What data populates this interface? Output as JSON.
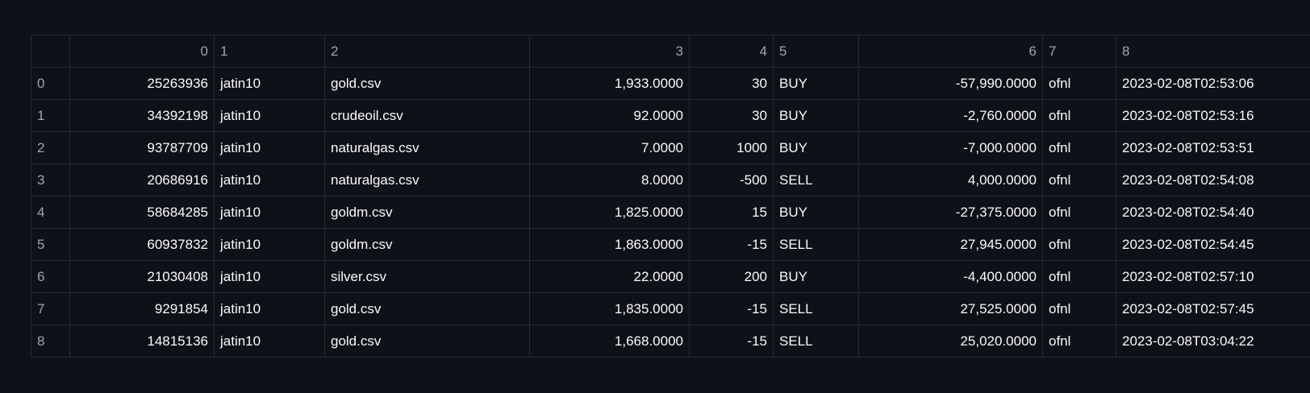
{
  "table": {
    "corner": "",
    "columns": [
      "0",
      "1",
      "2",
      "3",
      "4",
      "5",
      "6",
      "7",
      "8"
    ],
    "rows": [
      {
        "index": "0",
        "cells": [
          "25263936",
          "jatin10",
          "gold.csv",
          "1,933.0000",
          "30",
          "BUY",
          "-57,990.0000",
          "ofnl",
          "2023-02-08T02:53:06"
        ]
      },
      {
        "index": "1",
        "cells": [
          "34392198",
          "jatin10",
          "crudeoil.csv",
          "92.0000",
          "30",
          "BUY",
          "-2,760.0000",
          "ofnl",
          "2023-02-08T02:53:16"
        ]
      },
      {
        "index": "2",
        "cells": [
          "93787709",
          "jatin10",
          "naturalgas.csv",
          "7.0000",
          "1000",
          "BUY",
          "-7,000.0000",
          "ofnl",
          "2023-02-08T02:53:51"
        ]
      },
      {
        "index": "3",
        "cells": [
          "20686916",
          "jatin10",
          "naturalgas.csv",
          "8.0000",
          "-500",
          "SELL",
          "4,000.0000",
          "ofnl",
          "2023-02-08T02:54:08"
        ]
      },
      {
        "index": "4",
        "cells": [
          "58684285",
          "jatin10",
          "goldm.csv",
          "1,825.0000",
          "15",
          "BUY",
          "-27,375.0000",
          "ofnl",
          "2023-02-08T02:54:40"
        ]
      },
      {
        "index": "5",
        "cells": [
          "60937832",
          "jatin10",
          "goldm.csv",
          "1,863.0000",
          "-15",
          "SELL",
          "27,945.0000",
          "ofnl",
          "2023-02-08T02:54:45"
        ]
      },
      {
        "index": "6",
        "cells": [
          "21030408",
          "jatin10",
          "silver.csv",
          "22.0000",
          "200",
          "BUY",
          "-4,400.0000",
          "ofnl",
          "2023-02-08T02:57:10"
        ]
      },
      {
        "index": "7",
        "cells": [
          "9291854",
          "jatin10",
          "gold.csv",
          "1,835.0000",
          "-15",
          "SELL",
          "27,525.0000",
          "ofnl",
          "2023-02-08T02:57:45"
        ]
      },
      {
        "index": "8",
        "cells": [
          "14815136",
          "jatin10",
          "gold.csv",
          "1,668.0000",
          "-15",
          "SELL",
          "25,020.0000",
          "ofnl",
          "2023-02-08T03:04:22"
        ]
      }
    ]
  }
}
